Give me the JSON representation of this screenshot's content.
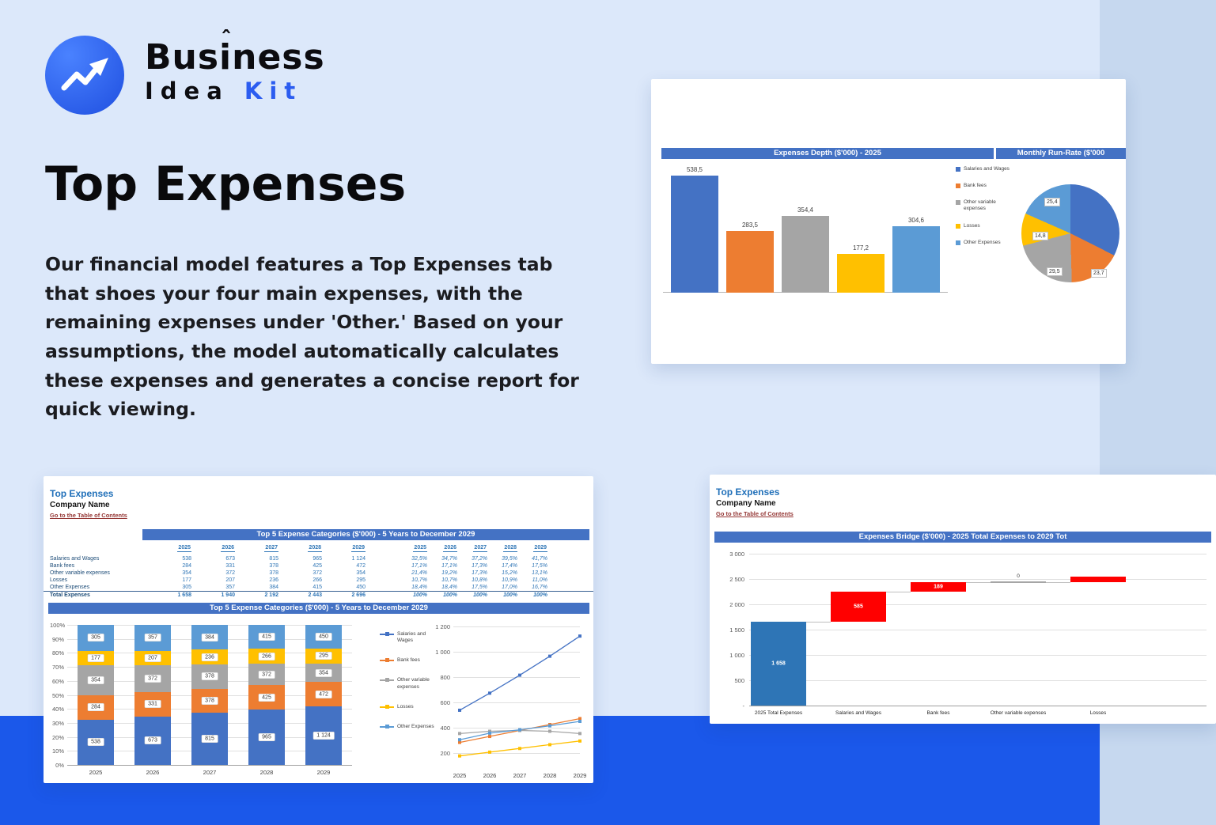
{
  "colors": {
    "page_bg": "#dce8fa",
    "bottom_band": "#1b58ea",
    "brand_accent": "#2b5cf0",
    "excel_header_blue": "#4472c4",
    "sheet_title_blue": "#2170b9",
    "table_value_blue": "#2e75b6",
    "table_label_navy": "#1f4e79",
    "toc_link_maroon": "#943634",
    "bridge_red": "#ff0000",
    "series_colors": [
      "#4472c4",
      "#ed7d31",
      "#a5a5a5",
      "#ffc000",
      "#5b9bd5"
    ]
  },
  "logo": {
    "brand_line1": "Business",
    "brand_line2_a": "Idea",
    "brand_line2_b": "Kit"
  },
  "hero": {
    "title": "Top Expenses",
    "body": "Our financial model features a Top Expenses tab that shoes your four main expenses, with the remaining expenses under 'Other.' Based on your assumptions, the model automatically calculates these expenses and generates a concise report for quick viewing."
  },
  "sheet_header": {
    "title": "Top Expenses",
    "company": "Company Name",
    "toc_link": "Go to the Table of Contents"
  },
  "series_names": [
    "Salaries and Wages",
    "Bank fees",
    "Other variable expenses",
    "Losses",
    "Other Expenses"
  ],
  "chart_data": [
    {
      "id": "expenses-depth-bar",
      "type": "bar",
      "title": "Expenses Depth ($'000) - 2025",
      "categories": [
        "Salaries and Wages",
        "Bank fees",
        "Other variable expenses",
        "Losses",
        "Other Expenses"
      ],
      "values": [
        538.5,
        283.5,
        354.4,
        177.2,
        304.6
      ],
      "value_labels": [
        "538,5",
        "283,5",
        "354,4",
        "177,2",
        "304,6"
      ],
      "ylim": [
        0,
        600
      ],
      "legend_position": "right",
      "grid": false
    },
    {
      "id": "monthly-run-rate-pie",
      "type": "pie",
      "title": "Monthly Run-Rate ($'000",
      "labels": [
        "Salaries and Wages",
        "Bank fees",
        "Other variable expenses",
        "Losses",
        "Other Expenses"
      ],
      "values": [
        44.8,
        23.7,
        29.5,
        14.8,
        25.4
      ],
      "visible_value_labels": [
        "25,4",
        "14,8",
        "29,5",
        "23,7"
      ]
    },
    {
      "id": "top5-table",
      "type": "table",
      "title": "Top 5 Expense Categories ($'000) - 5 Years to December 2029",
      "years": [
        "2025",
        "2026",
        "2027",
        "2028",
        "2029"
      ],
      "rows": [
        {
          "label": "Salaries and Wages",
          "values": [
            "538",
            "673",
            "815",
            "965",
            "1 124"
          ],
          "shares": [
            "32,5%",
            "34,7%",
            "37,2%",
            "39,5%",
            "41,7%"
          ]
        },
        {
          "label": "Bank fees",
          "values": [
            "284",
            "331",
            "378",
            "425",
            "472"
          ],
          "shares": [
            "17,1%",
            "17,1%",
            "17,3%",
            "17,4%",
            "17,5%"
          ]
        },
        {
          "label": "Other variable expenses",
          "values": [
            "354",
            "372",
            "378",
            "372",
            "354"
          ],
          "shares": [
            "21,4%",
            "19,2%",
            "17,3%",
            "15,2%",
            "13,1%"
          ]
        },
        {
          "label": "Losses",
          "values": [
            "177",
            "207",
            "236",
            "266",
            "295"
          ],
          "shares": [
            "10,7%",
            "10,7%",
            "10,8%",
            "10,9%",
            "11,0%"
          ]
        },
        {
          "label": "Other Expenses",
          "values": [
            "305",
            "357",
            "384",
            "415",
            "450"
          ],
          "shares": [
            "18,4%",
            "18,4%",
            "17,5%",
            "17,0%",
            "16,7%"
          ]
        }
      ],
      "total_row": {
        "label": "Total Expenses",
        "values": [
          "1 658",
          "1 940",
          "2 192",
          "2 443",
          "2 696"
        ],
        "shares": [
          "100%",
          "100%",
          "100%",
          "100%",
          "100%"
        ]
      }
    },
    {
      "id": "top5-stacked-bar",
      "type": "bar",
      "stacked": true,
      "title": "Top 5 Expense Categories ($'000) - 5 Years to December 2029",
      "categories": [
        "2025",
        "2026",
        "2027",
        "2028",
        "2029"
      ],
      "series": [
        {
          "name": "Salaries and Wages",
          "values": [
            538,
            673,
            815,
            965,
            1124
          ],
          "labels": [
            "538",
            "673",
            "815",
            "965",
            "1 124"
          ]
        },
        {
          "name": "Bank fees",
          "values": [
            284,
            331,
            378,
            425,
            472
          ],
          "labels": [
            "284",
            "331",
            "378",
            "425",
            "472"
          ]
        },
        {
          "name": "Other variable expenses",
          "values": [
            354,
            372,
            378,
            372,
            354
          ],
          "labels": [
            "354",
            "372",
            "378",
            "372",
            "354"
          ]
        },
        {
          "name": "Losses",
          "values": [
            177,
            207,
            236,
            266,
            295
          ],
          "labels": [
            "177",
            "207",
            "236",
            "266",
            "295"
          ]
        },
        {
          "name": "Other Expenses",
          "values": [
            305,
            357,
            384,
            415,
            450
          ],
          "labels": [
            "305",
            "357",
            "384",
            "415",
            "450"
          ]
        }
      ],
      "y_ticks": [
        "100%",
        "90%",
        "80%",
        "70%",
        "60%",
        "50%",
        "40%",
        "30%",
        "20%",
        "10%",
        "0%"
      ],
      "grid": true,
      "legend_position": "right"
    },
    {
      "id": "top5-line",
      "type": "line",
      "x": [
        "2025",
        "2026",
        "2027",
        "2028",
        "2029"
      ],
      "series": [
        {
          "name": "Salaries and Wages",
          "values": [
            538,
            673,
            815,
            965,
            1124
          ]
        },
        {
          "name": "Bank fees",
          "values": [
            284,
            331,
            378,
            425,
            472
          ]
        },
        {
          "name": "Other variable expenses",
          "values": [
            354,
            372,
            378,
            372,
            354
          ]
        },
        {
          "name": "Losses",
          "values": [
            177,
            207,
            236,
            266,
            295
          ]
        },
        {
          "name": "Other Expenses",
          "values": [
            305,
            357,
            384,
            415,
            450
          ]
        }
      ],
      "y_ticks": [
        "1 200",
        "1 000",
        "800",
        "600",
        "400",
        "200"
      ],
      "ylim": [
        100,
        1250
      ],
      "grid": true
    },
    {
      "id": "expenses-bridge-waterfall",
      "type": "waterfall",
      "title": "Expenses Bridge ($'000) - 2025 Total Expenses to 2029 Tot",
      "categories": [
        "2025 Total Expenses",
        "Salaries and Wages",
        "Bank fees",
        "Other variable expenses",
        "Losses"
      ],
      "bars": [
        {
          "category": "2025 Total Expenses",
          "start": 0,
          "end": 1658,
          "label": "1 658",
          "color": "#2e75b6"
        },
        {
          "category": "Salaries and Wages",
          "start": 1658,
          "end": 2243,
          "label": "585",
          "color": "#ff0000"
        },
        {
          "category": "Bank fees",
          "start": 2243,
          "end": 2432,
          "label": "189",
          "color": "#ff0000"
        },
        {
          "category": "Other variable expenses",
          "start": 2432,
          "end": 2432,
          "label": "0",
          "color": "#a6a6a6"
        },
        {
          "category": "Losses",
          "start": 2432,
          "end": 2550,
          "label": "",
          "color": "#ff0000"
        }
      ],
      "y_ticks": [
        "3 000",
        "2 500",
        "2 000",
        "1 500",
        "1 000",
        "500",
        "-"
      ],
      "ylim": [
        0,
        3000
      ],
      "grid": true
    }
  ]
}
